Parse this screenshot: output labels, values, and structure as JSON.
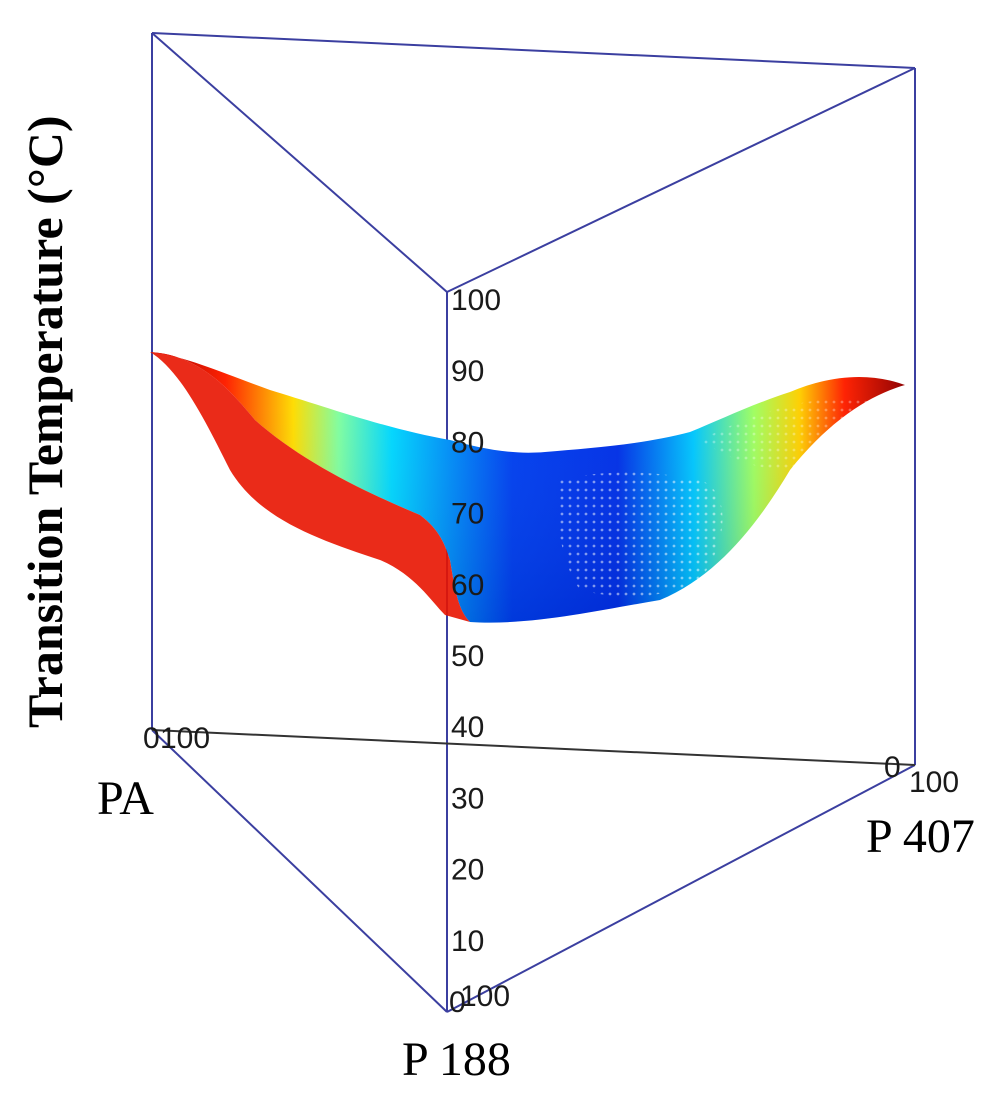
{
  "chart_data": {
    "type": "ternary-surface",
    "ylabel": "Transition Temperature (°C)",
    "components": [
      "PA",
      "P 188",
      "P 407"
    ],
    "z_ticks": [
      "0",
      "10",
      "20",
      "30",
      "40",
      "50",
      "60",
      "70",
      "80",
      "90",
      "100"
    ],
    "zlim": [
      0,
      100
    ],
    "vertex_ticks": {
      "PA": [
        "0",
        "100"
      ],
      "P 407": [
        "0",
        "100"
      ],
      "P 188": [
        "0",
        "100"
      ]
    },
    "colormap": [
      "#0018d8",
      "#00a8ff",
      "#00f0ff",
      "#90ff70",
      "#ffff00",
      "#ff9000",
      "#ff2000",
      "#a00000"
    ],
    "surface_edges": {
      "PA_to_P407_edge": [
        {
          "P407": 0,
          "temp": 85
        },
        {
          "P407": 20,
          "temp": 79
        },
        {
          "P407": 40,
          "temp": 75
        },
        {
          "P407": 60,
          "temp": 73
        },
        {
          "P407": 80,
          "temp": 80
        },
        {
          "P407": 100,
          "temp": 87
        }
      ],
      "P188_to_P407_edge": [
        {
          "P407": 0,
          "temp": 57
        },
        {
          "P407": 20,
          "temp": 56
        },
        {
          "P407": 40,
          "temp": 56
        },
        {
          "P407": 60,
          "temp": 58
        },
        {
          "P407": 80,
          "temp": 76
        },
        {
          "P407": 100,
          "temp": 87
        }
      ],
      "PA_to_P188_edge": [
        {
          "P188": 0,
          "temp": 85
        },
        {
          "P188": 25,
          "temp": 78
        },
        {
          "P188": 50,
          "temp": 68
        },
        {
          "P188": 75,
          "temp": 60
        },
        {
          "P188": 100,
          "temp": 57
        }
      ]
    }
  }
}
